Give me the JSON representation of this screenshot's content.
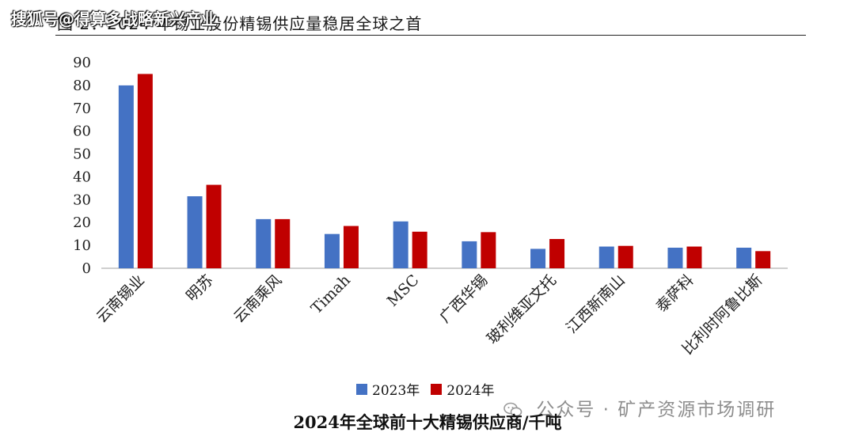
{
  "header": {
    "title": "图 2：2024 年锡业股份精锡供应量稳居全球之首",
    "watermark": "搜狐号@得算多战略新兴产业"
  },
  "footer": {
    "caption": "2024年全球前十大精锡供应商/千吨",
    "watermark": "公众号 · 矿产资源市场调研",
    "watermark_icon": "wechat-icon"
  },
  "colors": {
    "series_2023": "#4472C4",
    "series_2024": "#C00000",
    "axis": "#bfbfbf"
  },
  "chart_data": {
    "type": "bar",
    "title": "2024年全球前十大精锡供应商/千吨",
    "categories": [
      "云南锡业",
      "明苏",
      "云南乘风",
      "Timah",
      "MSC",
      "广西华锡",
      "玻利维亚文托",
      "江西新南山",
      "泰萨科",
      "比利时阿鲁比斯"
    ],
    "series": [
      {
        "name": "2023年",
        "values": [
          80,
          31.5,
          21.5,
          15,
          20.5,
          11.8,
          8.5,
          9.5,
          9,
          9
        ],
        "color": "#4472C4"
      },
      {
        "name": "2024年",
        "values": [
          85,
          36.5,
          21.5,
          18.5,
          16,
          15.8,
          12.8,
          9.8,
          9.5,
          7.5
        ],
        "color": "#C00000"
      }
    ],
    "ylim": [
      0,
      90
    ],
    "yticks": [
      "0",
      "10",
      "20",
      "30",
      "40",
      "50",
      "60",
      "70",
      "80",
      "90"
    ],
    "grid": false,
    "legend_position": "bottom"
  }
}
